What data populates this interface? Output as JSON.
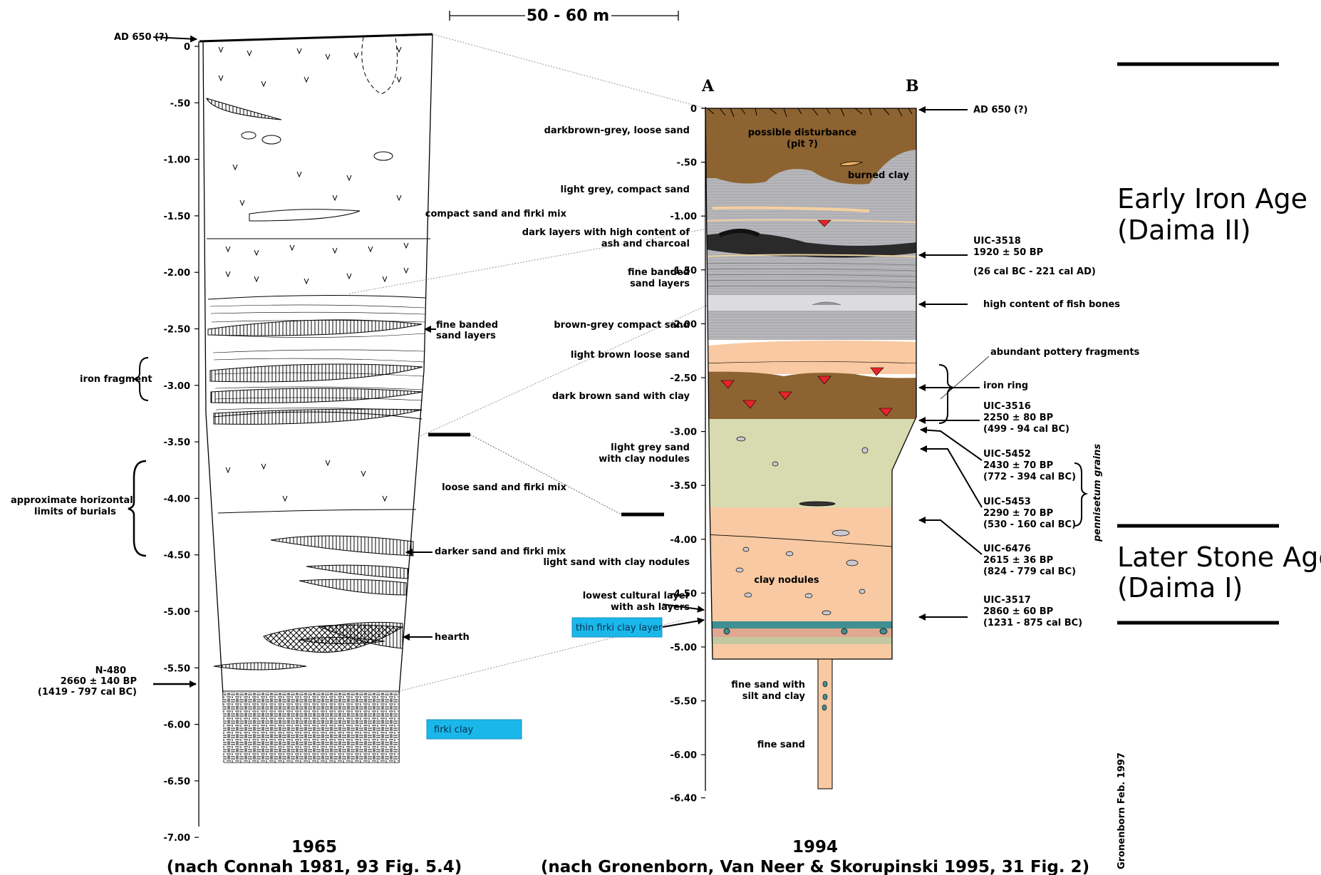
{
  "scale_bar": "50 - 60 m",
  "left": {
    "ad_label": "AD 650 (?)",
    "ticks": [
      "0",
      "-.50",
      "-1.00",
      "-1.50",
      "-2.00",
      "-2.50",
      "-3.00",
      "-3.50",
      "-4.00",
      "-4.50",
      "-5.00",
      "-5.50",
      "-6.00",
      "-6.50",
      "-7.00"
    ],
    "labels": {
      "iron_fragment": "iron fragment",
      "burials": [
        "approximate horizontal",
        "limits of burials"
      ],
      "fine_banded": [
        "fine banded",
        "sand layers"
      ],
      "darker_sand": "darker sand and firki mix",
      "hearth": "hearth",
      "date_lines": [
        "N-480",
        "2660 ± 140 BP",
        "(1419 - 797 cal BC)"
      ]
    },
    "legend": "firki clay",
    "year": "1965",
    "source": "(nach Connah 1981, 93 Fig. 5.4)"
  },
  "middle_labels": {
    "l1": "darkbrown-grey, loose sand",
    "l2": "light grey, compact sand",
    "l3": "compact sand and firki mix",
    "l4": [
      "dark layers with high content of",
      "ash and charcoal"
    ],
    "l5": [
      "fine banded",
      "sand layers"
    ],
    "l6": "brown-grey compact sand",
    "l7": "light brown loose sand",
    "l8": "dark brown sand with clay",
    "l9": [
      "light grey sand",
      "with clay nodules"
    ],
    "l10": "loose sand and firki mix",
    "l11": "light sand with clay nodules",
    "l12": [
      "lowest cultural layer",
      "with ash layers"
    ],
    "l13": "thin firki clay layer"
  },
  "right": {
    "col_a": "A",
    "col_b": "B",
    "ticks": [
      "0",
      "-.50",
      "-1.00",
      "-1.50",
      "-2.00",
      "-2.50",
      "-3.00",
      "-3.50",
      "-4.00",
      "-4.50",
      "-5.00",
      "-5.50",
      "-6.00",
      "-6.40"
    ],
    "inner_labels": {
      "disturbance": [
        "possible disturbance",
        "(pit ?)"
      ],
      "burned_clay": "burned clay",
      "clay_nodules": "clay nodules",
      "fine_sand_silt": [
        "fine sand with",
        "silt and clay"
      ],
      "fine_sand": "fine sand"
    },
    "annotations": {
      "ad": "AD 650 (?)",
      "uic3518": [
        "UIC-3518",
        "1920 ± 50 BP",
        "(26 cal BC - 221 cal AD)"
      ],
      "fish": "high content of fish bones",
      "pottery": "abundant pottery fragments",
      "iron_ring": "iron ring",
      "uic3516": [
        "UIC-3516",
        "2250 ± 80 BP",
        "(499 - 94 cal BC)"
      ],
      "uic5452": [
        "UIC-5452",
        "2430 ± 70 BP",
        "(772 - 394 cal BC)"
      ],
      "uic5453": [
        "UIC-5453",
        "2290 ± 70 BP",
        "(530 - 160 cal BC)"
      ],
      "uic6476": [
        "UIC-6476",
        "2615 ± 36 BP",
        "(824 - 779 cal BC)"
      ],
      "uic3517": [
        "UIC-3517",
        "2860 ± 60 BP",
        "(1231 - 875 cal BC)"
      ],
      "pennisetum": "pennisetum grains"
    },
    "year": "1994",
    "source": "(nach Gronenborn, Van Neer & Skorupinski 1995, 31 Fig. 2)"
  },
  "eras": {
    "early": [
      "Early Iron Age",
      "(Daima II)"
    ],
    "later": [
      "Later Stone Age",
      "(Daima I)"
    ]
  },
  "credit": "Gronenborn Feb. 1997",
  "colors": {
    "dark_brown": "#8d6332",
    "grey": "#b8b8bc",
    "light_grey": "#d4d4d8",
    "peach": "#f8c9a2",
    "sage": "#d8dbb0",
    "firki_blue": "#1ab8ea",
    "red_pot": "#e8232a",
    "teal": "#3f8f93"
  }
}
